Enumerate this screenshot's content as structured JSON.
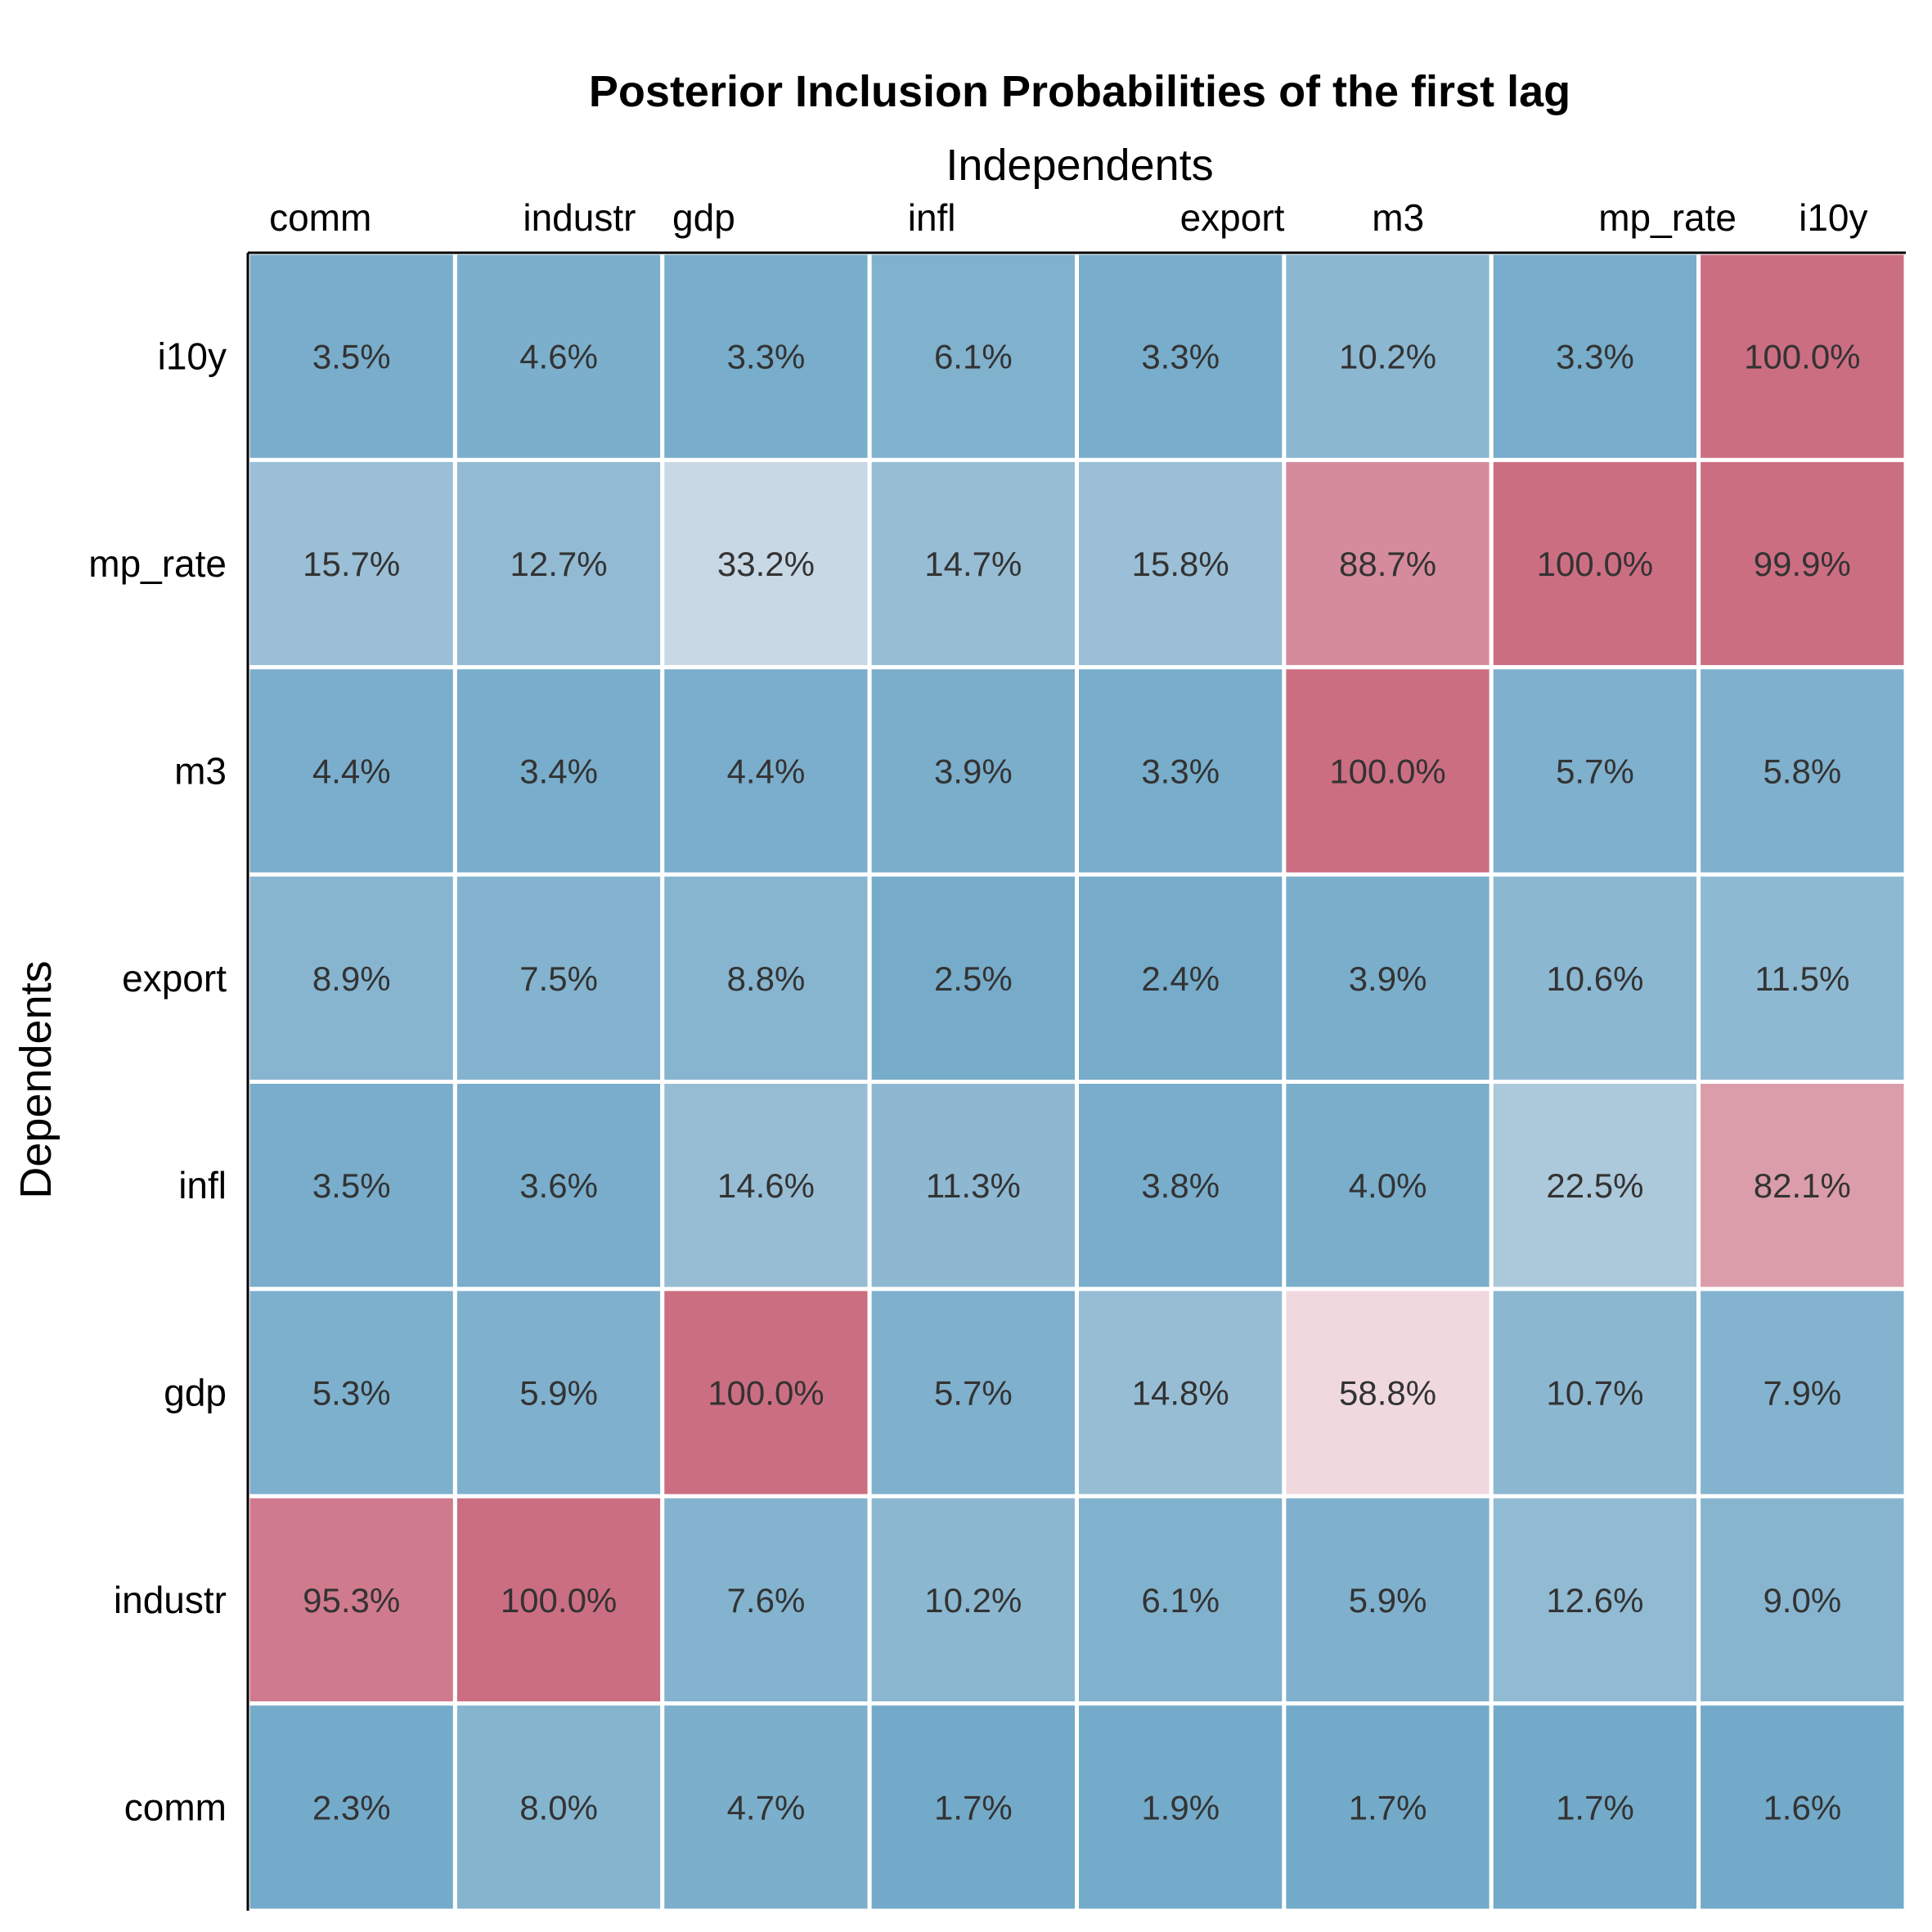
{
  "chart_data": {
    "type": "heatmap",
    "title": "Posterior Inclusion Probabilities of the first lag",
    "xlabel": "Independents",
    "ylabel": "Dependents",
    "x_categories": [
      "comm",
      "industr",
      "gdp",
      "infl",
      "export",
      "m3",
      "mp_rate",
      "i10y"
    ],
    "y_categories_top_to_bottom": [
      "i10y",
      "mp_rate",
      "m3",
      "export",
      "infl",
      "gdp",
      "industr",
      "comm"
    ],
    "value_unit": "%",
    "values": [
      [
        3.5,
        4.6,
        3.3,
        6.1,
        3.3,
        10.2,
        3.3,
        100.0
      ],
      [
        15.7,
        12.7,
        33.2,
        14.7,
        15.8,
        88.7,
        100.0,
        99.9
      ],
      [
        4.4,
        3.4,
        4.4,
        3.9,
        3.3,
        100.0,
        5.7,
        5.8
      ],
      [
        8.9,
        7.5,
        8.8,
        2.5,
        2.4,
        3.9,
        10.6,
        11.5
      ],
      [
        3.5,
        3.6,
        14.6,
        11.3,
        3.8,
        4.0,
        22.5,
        82.1
      ],
      [
        5.3,
        5.9,
        100.0,
        5.7,
        14.8,
        58.8,
        10.7,
        7.9
      ],
      [
        95.3,
        100.0,
        7.6,
        10.2,
        6.1,
        5.9,
        12.6,
        9.0
      ],
      [
        2.3,
        8.0,
        4.7,
        1.7,
        1.9,
        1.7,
        1.7,
        1.6
      ]
    ],
    "color_low": "#6fa8c8",
    "color_mid": "#f7f0f3",
    "color_high": "#cc6e82",
    "midpoint": 50,
    "grid": false,
    "legend": "none"
  }
}
